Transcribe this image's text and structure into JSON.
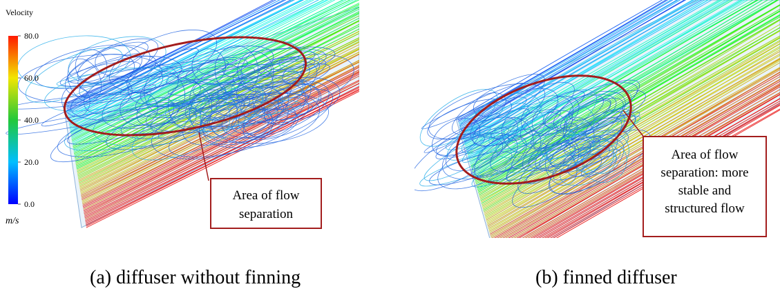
{
  "legend": {
    "title": "Velocity",
    "ticks": [
      {
        "value": 80,
        "label": "80.0"
      },
      {
        "value": 60,
        "label": "60.0"
      },
      {
        "value": 40,
        "label": "40.0"
      },
      {
        "value": 20,
        "label": "20.0"
      },
      {
        "value": 0,
        "label": "0.0"
      }
    ],
    "unit": "m/s"
  },
  "panels": [
    {
      "annotation": [
        "Area of flow",
        "separation"
      ],
      "caption": "(a) diffuser without finning"
    },
    {
      "annotation": [
        "Area of flow",
        "separation: more",
        "stable and",
        "structured flow"
      ],
      "caption": "(b) finned diffuser"
    }
  ]
}
